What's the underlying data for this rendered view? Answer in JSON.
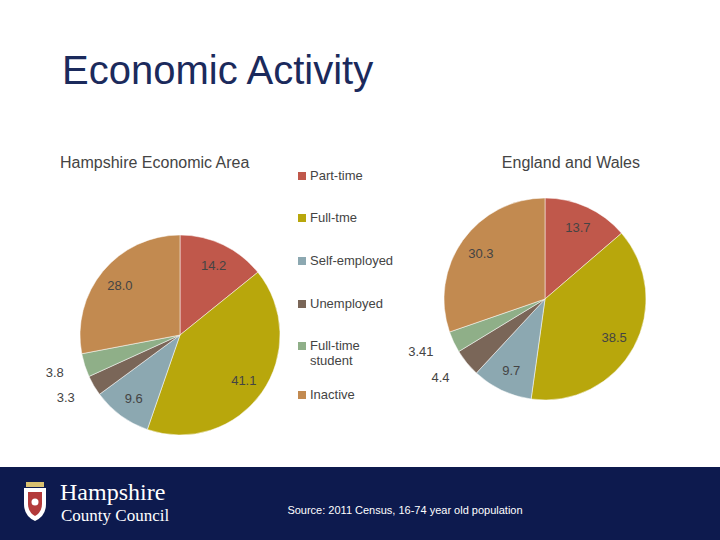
{
  "title": "Economic Activity",
  "chart_data": {
    "type": "pie",
    "categories": [
      "Part-time",
      "Full-tme",
      "Self-employed",
      "Unemployed",
      "Full-time student",
      "Inactive"
    ],
    "colors": [
      "#c0584b",
      "#b8a70c",
      "#8ca8b1",
      "#7a6658",
      "#8faf88",
      "#c28a50"
    ],
    "series": [
      {
        "name": "Hampshire Economic Area",
        "values": [
          14.2,
          41.1,
          9.6,
          3.3,
          3.8,
          28.0
        ],
        "value_labels": [
          "14.2",
          "41.1",
          "9.6",
          "3.3",
          "3.8",
          "28.0"
        ]
      },
      {
        "name": "England and Wales",
        "values": [
          13.7,
          38.5,
          9.7,
          4.4,
          3.41,
          30.3
        ],
        "value_labels": [
          "13.7",
          "38.5",
          "9.7",
          "4.4",
          "3.41",
          "30.3"
        ]
      }
    ],
    "data_labels": true,
    "legend": "center"
  },
  "footer": {
    "organisation": [
      "Hampshire",
      "County Council"
    ],
    "source": "Source: 2011 Census, 16-74 year old population"
  }
}
